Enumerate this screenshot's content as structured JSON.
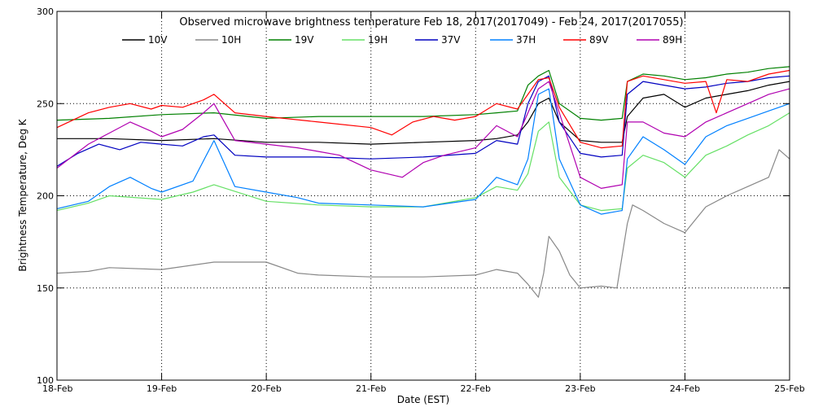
{
  "chart_data": {
    "type": "line",
    "title": "Observed microwave brightness temperature Feb 18, 2017(2017049) - Feb 24, 2017(2017055)",
    "xlabel": "Date (EST)",
    "ylabel": "Brightness Temperature, Deg K",
    "xlim": [
      0,
      7
    ],
    "ylim": [
      100,
      300
    ],
    "x_ticks": [
      {
        "x": 0,
        "label": "18-Feb"
      },
      {
        "x": 1,
        "label": "19-Feb"
      },
      {
        "x": 2,
        "label": "20-Feb"
      },
      {
        "x": 3,
        "label": "21-Feb"
      },
      {
        "x": 4,
        "label": "22-Feb"
      },
      {
        "x": 5,
        "label": "23-Feb"
      },
      {
        "x": 6,
        "label": "24-Feb"
      },
      {
        "x": 7,
        "label": "25-Feb"
      }
    ],
    "y_ticks": [
      {
        "y": 100,
        "label": "100"
      },
      {
        "y": 150,
        "label": "150"
      },
      {
        "y": 200,
        "label": "200"
      },
      {
        "y": 250,
        "label": "250"
      },
      {
        "y": 300,
        "label": "300"
      }
    ],
    "grid": "dotted",
    "legend_position": "top",
    "series": [
      {
        "name": "10V",
        "color": "#000000",
        "x": [
          0,
          0.5,
          1,
          1.5,
          2,
          2.5,
          3,
          3.5,
          4,
          4.2,
          4.4,
          4.5,
          4.6,
          4.7,
          4.8,
          5,
          5.2,
          5.4,
          5.45,
          5.6,
          5.8,
          6,
          6.2,
          6.4,
          6.6,
          6.8,
          7
        ],
        "y": [
          231,
          231,
          230,
          231,
          229,
          229,
          228,
          229,
          230,
          231,
          233,
          240,
          250,
          253,
          240,
          230,
          229,
          229,
          243,
          253,
          255,
          248,
          253,
          255,
          257,
          260,
          262
        ]
      },
      {
        "name": "10H",
        "color": "#888888",
        "x": [
          0,
          0.3,
          0.5,
          1,
          1.5,
          2,
          2.3,
          2.5,
          3,
          3.5,
          4,
          4.2,
          4.4,
          4.5,
          4.6,
          4.65,
          4.7,
          4.8,
          4.9,
          5,
          5.2,
          5.35,
          5.45,
          5.5,
          5.6,
          5.8,
          6,
          6.2,
          6.4,
          6.6,
          6.8,
          6.9,
          7
        ],
        "y": [
          158,
          159,
          161,
          160,
          164,
          164,
          158,
          157,
          156,
          156,
          157,
          160,
          158,
          152,
          145,
          158,
          178,
          170,
          157,
          150,
          151,
          150,
          185,
          195,
          192,
          185,
          180,
          194,
          200,
          205,
          210,
          225,
          220
        ]
      },
      {
        "name": "19V",
        "color": "#008000",
        "x": [
          0,
          0.5,
          1,
          1.5,
          2,
          2.5,
          3,
          3.5,
          4,
          4.2,
          4.4,
          4.5,
          4.6,
          4.7,
          4.8,
          5,
          5.2,
          5.4,
          5.45,
          5.6,
          5.8,
          6,
          6.2,
          6.4,
          6.6,
          6.8,
          7
        ],
        "y": [
          241,
          242,
          244,
          245,
          242,
          243,
          243,
          243,
          244,
          245,
          246,
          260,
          265,
          268,
          250,
          242,
          241,
          242,
          262,
          266,
          265,
          263,
          264,
          266,
          267,
          269,
          270
        ]
      },
      {
        "name": "19H",
        "color": "#66e066",
        "x": [
          0,
          0.3,
          0.5,
          1,
          1.3,
          1.5,
          2,
          2.5,
          3,
          3.5,
          4,
          4.2,
          4.4,
          4.5,
          4.6,
          4.7,
          4.8,
          5,
          5.2,
          5.4,
          5.45,
          5.6,
          5.8,
          6,
          6.2,
          6.4,
          6.6,
          6.8,
          7
        ],
        "y": [
          192,
          196,
          200,
          198,
          202,
          206,
          197,
          195,
          194,
          194,
          199,
          205,
          203,
          212,
          235,
          240,
          210,
          195,
          192,
          193,
          215,
          222,
          218,
          210,
          222,
          227,
          233,
          238,
          245
        ]
      },
      {
        "name": "37V",
        "color": "#0000c0",
        "x": [
          0,
          0.2,
          0.4,
          0.6,
          0.8,
          1,
          1.2,
          1.4,
          1.5,
          1.7,
          2,
          2.5,
          3,
          3.5,
          4,
          4.2,
          4.4,
          4.5,
          4.6,
          4.7,
          4.8,
          5,
          5.2,
          5.4,
          5.45,
          5.6,
          5.8,
          6,
          6.2,
          6.4,
          6.6,
          6.8,
          7
        ],
        "y": [
          216,
          223,
          228,
          225,
          229,
          228,
          227,
          232,
          233,
          222,
          221,
          221,
          220,
          221,
          223,
          230,
          228,
          250,
          262,
          265,
          240,
          223,
          221,
          222,
          255,
          262,
          260,
          258,
          259,
          261,
          262,
          264,
          265
        ]
      },
      {
        "name": "37H",
        "color": "#0080ff",
        "x": [
          0,
          0.3,
          0.5,
          0.7,
          0.9,
          1,
          1.3,
          1.5,
          1.7,
          2,
          2.3,
          2.5,
          3,
          3.5,
          4,
          4.2,
          4.4,
          4.5,
          4.6,
          4.7,
          4.8,
          5,
          5.2,
          5.4,
          5.45,
          5.6,
          5.8,
          6,
          6.2,
          6.4,
          6.6,
          6.8,
          7
        ],
        "y": [
          193,
          197,
          205,
          210,
          204,
          202,
          208,
          230,
          205,
          202,
          199,
          196,
          195,
          194,
          198,
          210,
          206,
          220,
          255,
          258,
          220,
          195,
          190,
          192,
          220,
          232,
          225,
          217,
          232,
          238,
          242,
          246,
          250
        ]
      },
      {
        "name": "89V",
        "color": "#ff0000",
        "x": [
          0,
          0.3,
          0.5,
          0.7,
          0.9,
          1,
          1.2,
          1.4,
          1.5,
          1.7,
          2,
          2.5,
          3,
          3.2,
          3.4,
          3.6,
          3.8,
          4,
          4.2,
          4.4,
          4.5,
          4.6,
          4.7,
          4.8,
          5,
          5.2,
          5.4,
          5.45,
          5.6,
          5.8,
          6,
          6.2,
          6.3,
          6.4,
          6.6,
          6.8,
          7
        ],
        "y": [
          237,
          245,
          248,
          250,
          247,
          249,
          248,
          252,
          255,
          245,
          243,
          240,
          237,
          233,
          240,
          243,
          241,
          243,
          250,
          247,
          255,
          263,
          264,
          248,
          229,
          226,
          227,
          262,
          265,
          263,
          261,
          262,
          245,
          263,
          262,
          266,
          268
        ]
      },
      {
        "name": "89H",
        "color": "#b000b0",
        "x": [
          0,
          0.3,
          0.5,
          0.7,
          0.9,
          1,
          1.2,
          1.4,
          1.5,
          1.7,
          2,
          2.3,
          2.5,
          2.7,
          3,
          3.3,
          3.5,
          3.7,
          4,
          4.2,
          4.4,
          4.5,
          4.6,
          4.7,
          4.8,
          5,
          5.2,
          5.4,
          5.45,
          5.6,
          5.8,
          6,
          6.2,
          6.4,
          6.6,
          6.8,
          7
        ],
        "y": [
          215,
          228,
          234,
          240,
          235,
          232,
          236,
          245,
          250,
          230,
          228,
          226,
          224,
          222,
          214,
          210,
          218,
          222,
          226,
          238,
          232,
          245,
          258,
          262,
          245,
          210,
          204,
          206,
          240,
          240,
          234,
          232,
          240,
          245,
          250,
          255,
          258
        ]
      }
    ]
  }
}
